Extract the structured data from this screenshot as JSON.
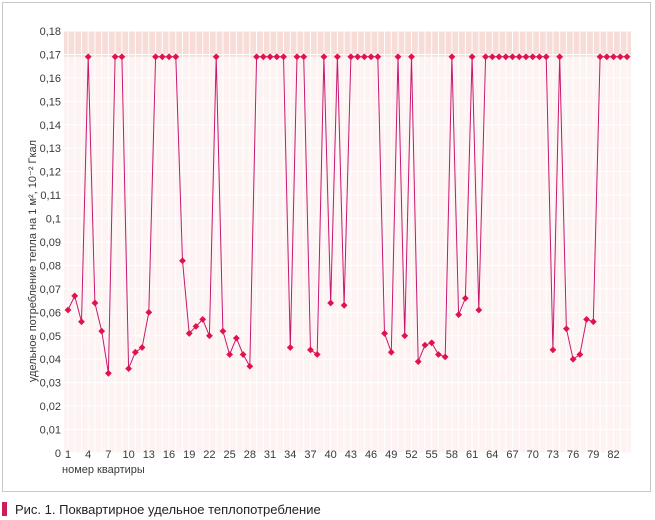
{
  "caption": "Рис. 1. Поквартирное удельное теплопотребление",
  "chart_data": {
    "type": "line",
    "title": "",
    "ylabel": "удельное потребление тепла на 1 м², 10⁻² Гкал",
    "xlabel": "номер квартиры",
    "ylim": [
      0,
      0.18
    ],
    "yticks": [
      "0",
      "0,01",
      "0,02",
      "0,03",
      "0,04",
      "0,05",
      "0,06",
      "0,07",
      "0,08",
      "0,09",
      "0,1",
      "0,11",
      "0,12",
      "0,13",
      "0,14",
      "0,15",
      "0,16",
      "0,17",
      "0,18"
    ],
    "xticks": [
      "1",
      "4",
      "7",
      "10",
      "13",
      "16",
      "19",
      "22",
      "25",
      "28",
      "31",
      "34",
      "37",
      "40",
      "43",
      "46",
      "49",
      "52",
      "55",
      "58",
      "61",
      "64",
      "67",
      "70",
      "73",
      "76",
      "79",
      "82"
    ],
    "grid": true,
    "x": [
      1,
      2,
      3,
      4,
      5,
      6,
      7,
      8,
      9,
      10,
      11,
      12,
      13,
      14,
      15,
      16,
      17,
      18,
      19,
      20,
      21,
      22,
      23,
      24,
      25,
      26,
      27,
      28,
      29,
      30,
      31,
      32,
      33,
      34,
      35,
      36,
      37,
      38,
      39,
      40,
      41,
      42,
      43,
      44,
      45,
      46,
      47,
      48,
      49,
      50,
      51,
      52,
      53,
      54,
      55,
      56,
      57,
      58,
      59,
      60,
      61,
      62,
      63,
      64,
      65,
      66,
      67,
      68,
      69,
      70,
      71,
      72,
      73,
      74,
      75,
      76,
      77,
      78,
      79,
      80,
      81,
      82,
      83,
      84
    ],
    "values": [
      0.061,
      0.067,
      0.056,
      0.169,
      0.064,
      0.052,
      0.034,
      0.169,
      0.169,
      0.036,
      0.043,
      0.045,
      0.06,
      0.169,
      0.169,
      0.169,
      0.169,
      0.082,
      0.051,
      0.054,
      0.057,
      0.05,
      0.169,
      0.052,
      0.042,
      0.049,
      0.042,
      0.037,
      0.169,
      0.169,
      0.169,
      0.169,
      0.169,
      0.045,
      0.169,
      0.169,
      0.044,
      0.042,
      0.169,
      0.064,
      0.169,
      0.063,
      0.169,
      0.169,
      0.169,
      0.169,
      0.169,
      0.051,
      0.043,
      0.169,
      0.05,
      0.169,
      0.039,
      0.046,
      0.047,
      0.042,
      0.041,
      0.169,
      0.059,
      0.066,
      0.169,
      0.061,
      0.169,
      0.169,
      0.169,
      0.169,
      0.169,
      0.169,
      0.169,
      0.169,
      0.169,
      0.169,
      0.044,
      0.169,
      0.053,
      0.04,
      0.042,
      0.057,
      0.056,
      0.169,
      0.169,
      0.169,
      0.169,
      0.169
    ],
    "colors": {
      "line": "#c8186e",
      "marker": "#e0134f",
      "band": "#f7dcd8",
      "plot_bg": "#fdf3f2",
      "grid": "#ffffff"
    }
  }
}
